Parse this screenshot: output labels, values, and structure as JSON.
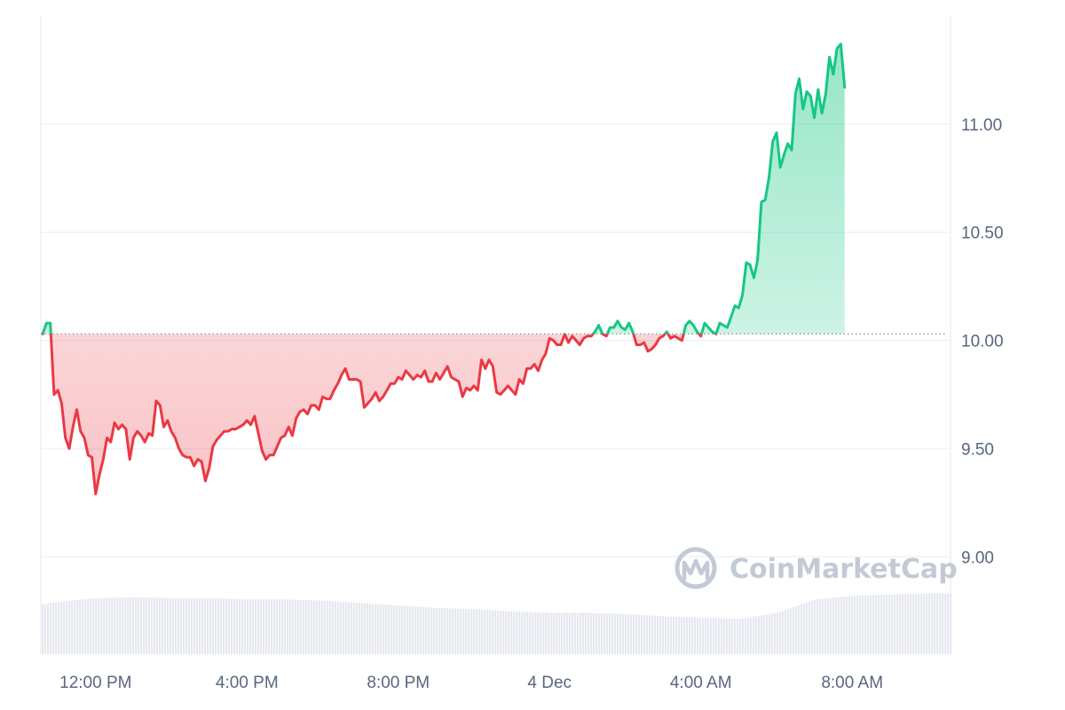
{
  "chart_data": {
    "type": "area",
    "baseline": 10.03,
    "ylim": [
      8.55,
      11.5
    ],
    "y_ticks": [
      9.0,
      9.5,
      10.0,
      10.5,
      11.0
    ],
    "y_tick_labels": [
      "9.00",
      "9.50",
      "10.00",
      "10.50",
      "11.00"
    ],
    "x_ticks": [
      {
        "hour": 12,
        "label": "12:00 PM"
      },
      {
        "hour": 16,
        "label": "4:00 PM"
      },
      {
        "hour": 20,
        "label": "8:00 PM"
      },
      {
        "hour": 24,
        "label": "4 Dec"
      },
      {
        "hour": 28,
        "label": "4:00 AM"
      },
      {
        "hour": 32,
        "label": "8:00 AM"
      }
    ],
    "xlim": [
      10.55,
      34.6
    ],
    "colors": {
      "up": "#16c784",
      "down": "#ea3943",
      "grid": "#eff2f5",
      "volume": "#e6e9ef",
      "watermark": "#c3cad6"
    },
    "watermark": "CoinMarketCap",
    "price_series": [
      [
        10.6,
        10.03
      ],
      [
        10.7,
        10.08
      ],
      [
        10.8,
        10.08
      ],
      [
        10.9,
        9.75
      ],
      [
        11.0,
        9.77
      ],
      [
        11.1,
        9.71
      ],
      [
        11.2,
        9.55
      ],
      [
        11.3,
        9.5
      ],
      [
        11.4,
        9.6
      ],
      [
        11.5,
        9.68
      ],
      [
        11.6,
        9.58
      ],
      [
        11.7,
        9.55
      ],
      [
        11.8,
        9.47
      ],
      [
        11.9,
        9.46
      ],
      [
        12.0,
        9.29
      ],
      [
        12.1,
        9.38
      ],
      [
        12.2,
        9.45
      ],
      [
        12.3,
        9.55
      ],
      [
        12.4,
        9.53
      ],
      [
        12.5,
        9.62
      ],
      [
        12.6,
        9.59
      ],
      [
        12.7,
        9.61
      ],
      [
        12.8,
        9.59
      ],
      [
        12.9,
        9.45
      ],
      [
        13.0,
        9.55
      ],
      [
        13.1,
        9.58
      ],
      [
        13.2,
        9.56
      ],
      [
        13.3,
        9.53
      ],
      [
        13.4,
        9.57
      ],
      [
        13.5,
        9.56
      ],
      [
        13.6,
        9.72
      ],
      [
        13.7,
        9.7
      ],
      [
        13.8,
        9.6
      ],
      [
        13.9,
        9.63
      ],
      [
        14.0,
        9.58
      ],
      [
        14.1,
        9.55
      ],
      [
        14.2,
        9.5
      ],
      [
        14.3,
        9.47
      ],
      [
        14.4,
        9.46
      ],
      [
        14.5,
        9.46
      ],
      [
        14.6,
        9.42
      ],
      [
        14.7,
        9.45
      ],
      [
        14.8,
        9.44
      ],
      [
        14.9,
        9.35
      ],
      [
        15.0,
        9.41
      ],
      [
        15.1,
        9.51
      ],
      [
        15.2,
        9.54
      ],
      [
        15.3,
        9.56
      ],
      [
        15.4,
        9.58
      ],
      [
        15.5,
        9.58
      ],
      [
        15.6,
        9.59
      ],
      [
        15.7,
        9.59
      ],
      [
        15.8,
        9.6
      ],
      [
        15.9,
        9.61
      ],
      [
        16.0,
        9.63
      ],
      [
        16.1,
        9.61
      ],
      [
        16.2,
        9.65
      ],
      [
        16.3,
        9.57
      ],
      [
        16.4,
        9.49
      ],
      [
        16.5,
        9.45
      ],
      [
        16.6,
        9.47
      ],
      [
        16.7,
        9.47
      ],
      [
        16.8,
        9.51
      ],
      [
        16.9,
        9.55
      ],
      [
        17.0,
        9.56
      ],
      [
        17.1,
        9.6
      ],
      [
        17.2,
        9.56
      ],
      [
        17.3,
        9.64
      ],
      [
        17.4,
        9.67
      ],
      [
        17.5,
        9.68
      ],
      [
        17.6,
        9.66
      ],
      [
        17.7,
        9.7
      ],
      [
        17.8,
        9.7
      ],
      [
        17.9,
        9.68
      ],
      [
        18.0,
        9.74
      ],
      [
        18.1,
        9.73
      ],
      [
        18.2,
        9.73
      ],
      [
        18.3,
        9.77
      ],
      [
        18.4,
        9.8
      ],
      [
        18.5,
        9.84
      ],
      [
        18.6,
        9.87
      ],
      [
        18.7,
        9.82
      ],
      [
        18.8,
        9.82
      ],
      [
        18.9,
        9.82
      ],
      [
        19.0,
        9.81
      ],
      [
        19.1,
        9.69
      ],
      [
        19.2,
        9.71
      ],
      [
        19.3,
        9.73
      ],
      [
        19.4,
        9.76
      ],
      [
        19.5,
        9.72
      ],
      [
        19.6,
        9.74
      ],
      [
        19.7,
        9.77
      ],
      [
        19.8,
        9.8
      ],
      [
        19.9,
        9.8
      ],
      [
        20.0,
        9.83
      ],
      [
        20.1,
        9.82
      ],
      [
        20.2,
        9.86
      ],
      [
        20.3,
        9.84
      ],
      [
        20.4,
        9.82
      ],
      [
        20.5,
        9.84
      ],
      [
        20.6,
        9.83
      ],
      [
        20.7,
        9.86
      ],
      [
        20.8,
        9.81
      ],
      [
        20.9,
        9.81
      ],
      [
        21.0,
        9.85
      ],
      [
        21.1,
        9.82
      ],
      [
        21.2,
        9.85
      ],
      [
        21.3,
        9.88
      ],
      [
        21.4,
        9.83
      ],
      [
        21.5,
        9.82
      ],
      [
        21.6,
        9.81
      ],
      [
        21.7,
        9.74
      ],
      [
        21.8,
        9.78
      ],
      [
        21.9,
        9.77
      ],
      [
        22.0,
        9.79
      ],
      [
        22.1,
        9.77
      ],
      [
        22.2,
        9.91
      ],
      [
        22.3,
        9.87
      ],
      [
        22.4,
        9.91
      ],
      [
        22.5,
        9.88
      ],
      [
        22.6,
        9.76
      ],
      [
        22.7,
        9.75
      ],
      [
        22.8,
        9.77
      ],
      [
        22.9,
        9.79
      ],
      [
        23.0,
        9.77
      ],
      [
        23.1,
        9.75
      ],
      [
        23.2,
        9.82
      ],
      [
        23.3,
        9.8
      ],
      [
        23.4,
        9.87
      ],
      [
        23.5,
        9.87
      ],
      [
        23.6,
        9.89
      ],
      [
        23.7,
        9.86
      ],
      [
        23.8,
        9.91
      ],
      [
        23.9,
        9.94
      ],
      [
        24.0,
        10.01
      ],
      [
        24.1,
        10.0
      ],
      [
        24.2,
        9.98
      ],
      [
        24.3,
        9.98
      ],
      [
        24.4,
        10.03
      ],
      [
        24.5,
        9.99
      ],
      [
        24.6,
        10.02
      ],
      [
        24.7,
        10.0
      ],
      [
        24.8,
        9.98
      ],
      [
        24.9,
        10.01
      ],
      [
        25.0,
        10.02
      ],
      [
        25.1,
        10.02
      ],
      [
        25.2,
        10.04
      ],
      [
        25.3,
        10.07
      ],
      [
        25.4,
        10.03
      ],
      [
        25.5,
        10.02
      ],
      [
        25.6,
        10.06
      ],
      [
        25.7,
        10.06
      ],
      [
        25.8,
        10.09
      ],
      [
        25.9,
        10.06
      ],
      [
        26.0,
        10.05
      ],
      [
        26.1,
        10.08
      ],
      [
        26.2,
        10.04
      ],
      [
        26.3,
        9.98
      ],
      [
        26.4,
        9.98
      ],
      [
        26.5,
        9.99
      ],
      [
        26.6,
        9.95
      ],
      [
        26.7,
        9.96
      ],
      [
        26.8,
        9.98
      ],
      [
        26.9,
        10.01
      ],
      [
        27.0,
        10.02
      ],
      [
        27.1,
        10.04
      ],
      [
        27.2,
        10.01
      ],
      [
        27.3,
        10.02
      ],
      [
        27.4,
        10.01
      ],
      [
        27.5,
        10.0
      ],
      [
        27.6,
        10.07
      ],
      [
        27.7,
        10.09
      ],
      [
        27.8,
        10.07
      ],
      [
        27.9,
        10.04
      ],
      [
        28.0,
        10.02
      ],
      [
        28.1,
        10.08
      ],
      [
        28.2,
        10.06
      ],
      [
        28.3,
        10.04
      ],
      [
        28.4,
        10.03
      ],
      [
        28.5,
        10.08
      ],
      [
        28.6,
        10.07
      ],
      [
        28.7,
        10.06
      ],
      [
        28.8,
        10.11
      ],
      [
        28.9,
        10.16
      ],
      [
        29.0,
        10.15
      ],
      [
        29.1,
        10.21
      ],
      [
        29.2,
        10.36
      ],
      [
        29.3,
        10.35
      ],
      [
        29.4,
        10.29
      ],
      [
        29.5,
        10.37
      ],
      [
        29.6,
        10.64
      ],
      [
        29.7,
        10.65
      ],
      [
        29.8,
        10.75
      ],
      [
        29.9,
        10.92
      ],
      [
        30.0,
        10.96
      ],
      [
        30.1,
        10.8
      ],
      [
        30.2,
        10.86
      ],
      [
        30.3,
        10.91
      ],
      [
        30.4,
        10.88
      ],
      [
        30.5,
        11.14
      ],
      [
        30.6,
        11.21
      ],
      [
        30.7,
        11.07
      ],
      [
        30.8,
        11.15
      ],
      [
        30.9,
        11.13
      ],
      [
        31.0,
        11.03
      ],
      [
        31.1,
        11.16
      ],
      [
        31.2,
        11.05
      ],
      [
        31.3,
        11.14
      ],
      [
        31.4,
        11.31
      ],
      [
        31.5,
        11.23
      ],
      [
        31.6,
        11.35
      ],
      [
        31.7,
        11.37
      ],
      [
        31.8,
        11.17
      ]
    ],
    "volume_series": [
      [
        10.55,
        0.41
      ],
      [
        11.0,
        0.43
      ],
      [
        12.0,
        0.46
      ],
      [
        13.0,
        0.47
      ],
      [
        14.0,
        0.46
      ],
      [
        15.0,
        0.46
      ],
      [
        16.0,
        0.45
      ],
      [
        17.0,
        0.45
      ],
      [
        18.0,
        0.44
      ],
      [
        19.0,
        0.42
      ],
      [
        20.0,
        0.4
      ],
      [
        21.0,
        0.38
      ],
      [
        22.0,
        0.37
      ],
      [
        23.0,
        0.35
      ],
      [
        24.0,
        0.34
      ],
      [
        25.0,
        0.34
      ],
      [
        26.0,
        0.33
      ],
      [
        27.0,
        0.31
      ],
      [
        28.0,
        0.3
      ],
      [
        29.0,
        0.29
      ],
      [
        30.0,
        0.34
      ],
      [
        31.0,
        0.45
      ],
      [
        32.0,
        0.48
      ],
      [
        33.0,
        0.49
      ],
      [
        34.0,
        0.5
      ]
    ]
  }
}
